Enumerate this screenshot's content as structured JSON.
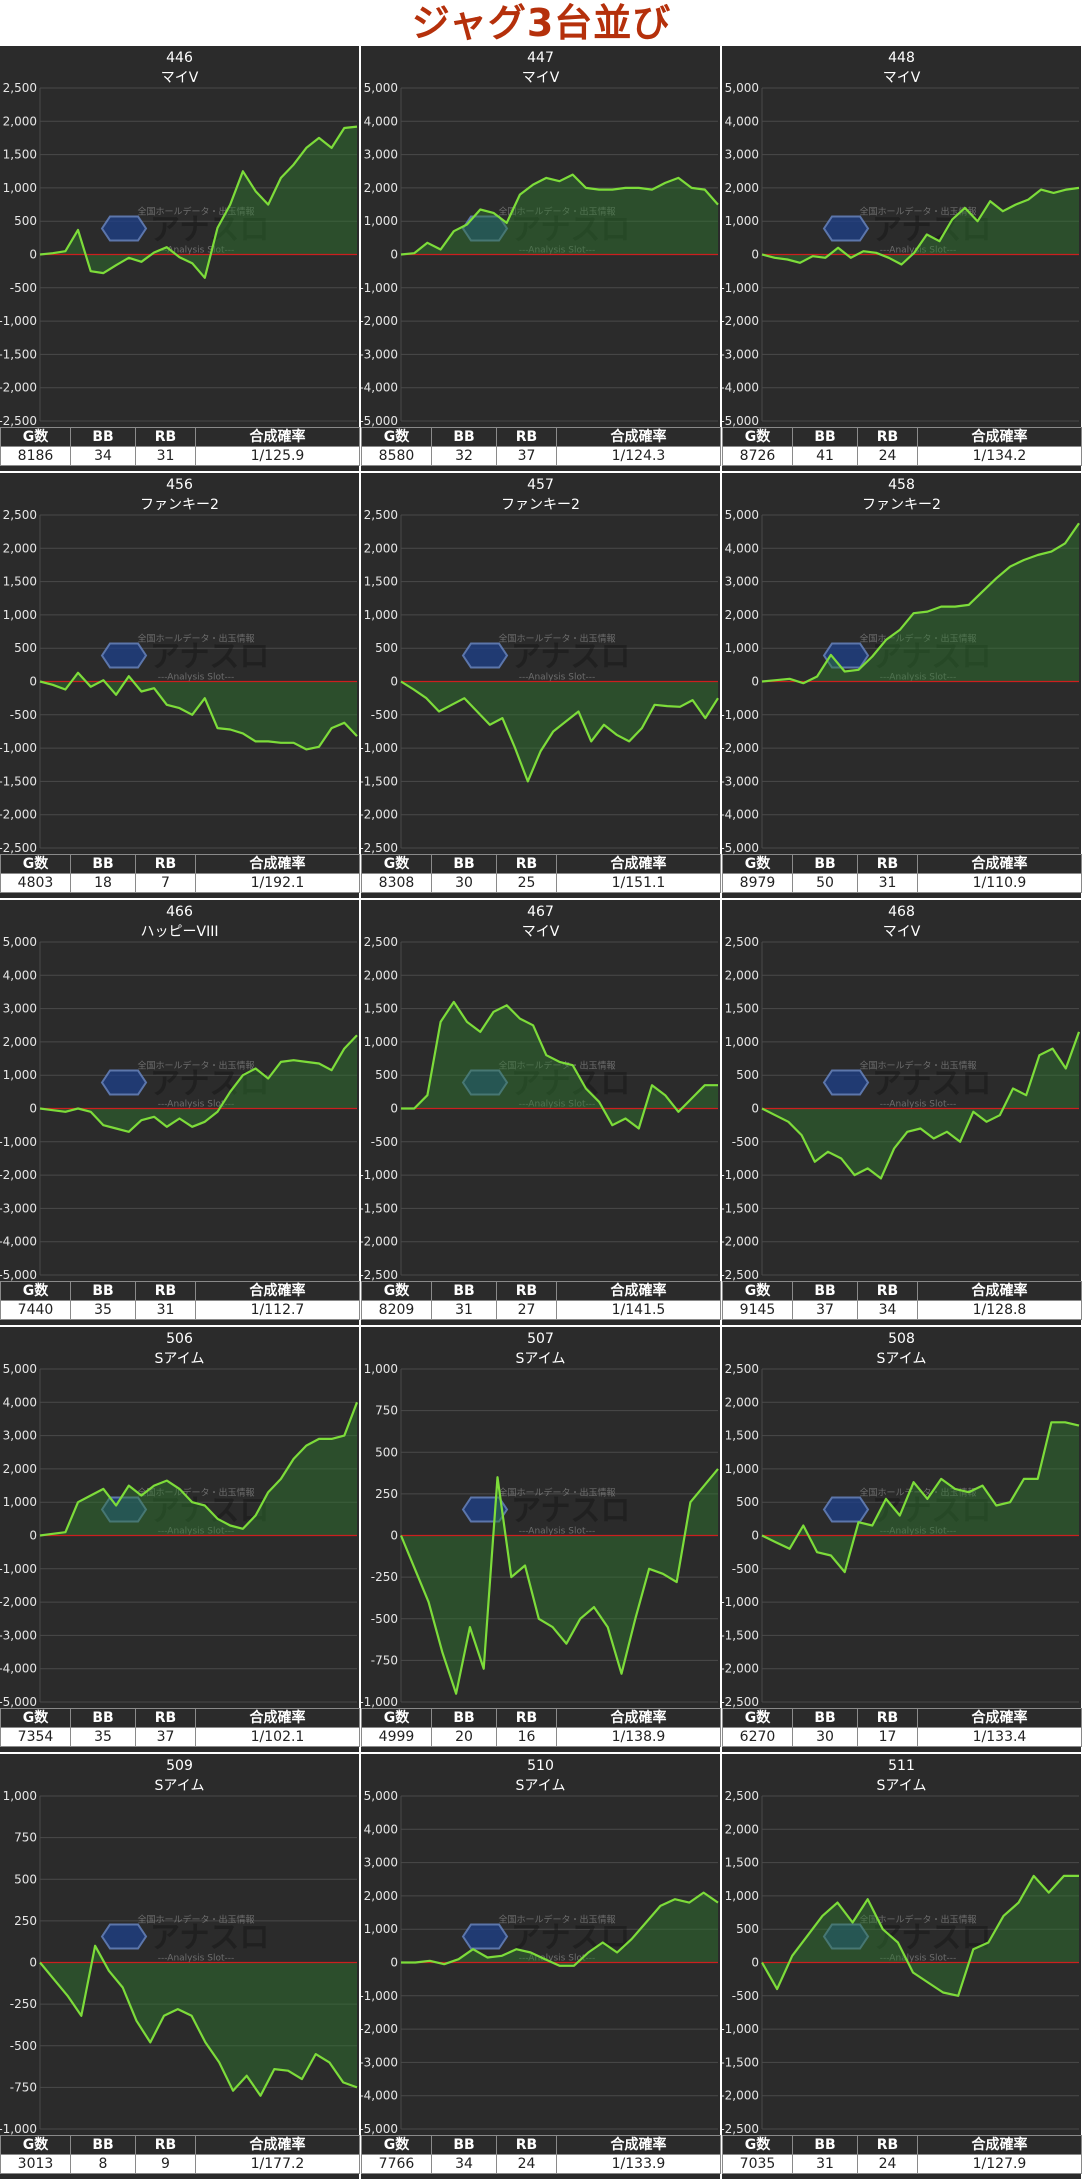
{
  "page_title": "ジャグ3台並び",
  "watermark": {
    "name": "アナスロ",
    "sub": "---Analysis Slot---",
    "tag": "全国ホールデータ・出玉情報"
  },
  "colors": {
    "title": "#b5300b",
    "panel": "#2b2b2b",
    "line": "#7ddc3a",
    "zero": "#cc1f1f",
    "grid": "#4a4a4a"
  },
  "table_headers": {
    "games": "G数",
    "bb": "BB",
    "rb": "RB",
    "prob": "合成確率"
  },
  "chart_data": [
    {
      "type": "line",
      "machine_no": "446",
      "machine_name": "マイV",
      "ylim": [
        -2500,
        2500
      ],
      "yticks": [
        2500,
        2000,
        1500,
        1000,
        500,
        0,
        -500,
        -1000,
        -1500,
        -2000,
        -2500
      ],
      "ytick_labels": [
        "2,500",
        "2,000",
        "1,500",
        "1,000",
        "500",
        "0",
        "-500",
        "-1,000",
        "-1,500",
        "-2,000",
        "-2,500"
      ],
      "values": [
        0,
        20,
        50,
        370,
        -250,
        -280,
        -160,
        -50,
        -110,
        30,
        110,
        -40,
        -130,
        -350,
        400,
        750,
        1250,
        950,
        750,
        1150,
        1350,
        1600,
        1750,
        1600,
        1900,
        1920
      ],
      "stats": {
        "games": "8186",
        "bb": "34",
        "rb": "31",
        "prob": "1/125.9"
      }
    },
    {
      "type": "line",
      "machine_no": "447",
      "machine_name": "マイV",
      "ylim": [
        -5000,
        5000
      ],
      "yticks": [
        5000,
        4000,
        3000,
        2000,
        1000,
        0,
        -1000,
        -2000,
        -3000,
        -4000,
        -5000
      ],
      "ytick_labels": [
        "5,000",
        "4,000",
        "3,000",
        "2,000",
        "1,000",
        "0",
        "-1,000",
        "-2,000",
        "-3,000",
        "-4,000",
        "-5,000"
      ],
      "values": [
        0,
        40,
        350,
        150,
        700,
        900,
        1350,
        1250,
        950,
        1800,
        2100,
        2300,
        2200,
        2400,
        2000,
        1950,
        1950,
        2000,
        2000,
        1950,
        2150,
        2300,
        2000,
        1950,
        1500
      ],
      "stats": {
        "games": "8580",
        "bb": "32",
        "rb": "37",
        "prob": "1/124.3"
      }
    },
    {
      "type": "line",
      "machine_no": "448",
      "machine_name": "マイV",
      "ylim": [
        -5000,
        5000
      ],
      "yticks": [
        5000,
        4000,
        3000,
        2000,
        1000,
        0,
        -1000,
        -2000,
        -3000,
        -4000,
        -5000
      ],
      "ytick_labels": [
        "5,000",
        "4,000",
        "3,000",
        "2,000",
        "1,000",
        "0",
        "-1,000",
        "-2,000",
        "-3,000",
        "-4,000",
        "-5,000"
      ],
      "values": [
        0,
        -100,
        -150,
        -250,
        -50,
        -100,
        200,
        -100,
        100,
        50,
        -100,
        -300,
        50,
        600,
        400,
        1050,
        1400,
        1000,
        1600,
        1300,
        1500,
        1650,
        1950,
        1850,
        1950,
        2000
      ],
      "stats": {
        "games": "8726",
        "bb": "41",
        "rb": "24",
        "prob": "1/134.2"
      }
    },
    {
      "type": "line",
      "machine_no": "456",
      "machine_name": "ファンキー2",
      "ylim": [
        -2500,
        2500
      ],
      "yticks": [
        2500,
        2000,
        1500,
        1000,
        500,
        0,
        -500,
        -1000,
        -1500,
        -2000,
        -2500
      ],
      "ytick_labels": [
        "2,500",
        "2,000",
        "1,500",
        "1,000",
        "500",
        "0",
        "-500",
        "-1,000",
        "-1,500",
        "-2,000",
        "-2,500"
      ],
      "values": [
        0,
        -50,
        -120,
        130,
        -80,
        20,
        -200,
        80,
        -150,
        -100,
        -350,
        -400,
        -500,
        -250,
        -700,
        -720,
        -780,
        -900,
        -900,
        -920,
        -920,
        -1020,
        -980,
        -700,
        -620,
        -820
      ],
      "stats": {
        "games": "4803",
        "bb": "18",
        "rb": "7",
        "prob": "1/192.1"
      }
    },
    {
      "type": "line",
      "machine_no": "457",
      "machine_name": "ファンキー2",
      "ylim": [
        -2500,
        2500
      ],
      "yticks": [
        2500,
        2000,
        1500,
        1000,
        500,
        0,
        -500,
        -1000,
        -1500,
        -2000,
        -2500
      ],
      "ytick_labels": [
        "2,500",
        "2,000",
        "1,500",
        "1,000",
        "500",
        "0",
        "-500",
        "-1,000",
        "-1,500",
        "-2,000",
        "-2,500"
      ],
      "values": [
        0,
        -120,
        -250,
        -450,
        -350,
        -250,
        -450,
        -650,
        -550,
        -1000,
        -1500,
        -1050,
        -750,
        -600,
        -450,
        -900,
        -650,
        -800,
        -900,
        -700,
        -350,
        -370,
        -380,
        -280,
        -550,
        -250
      ],
      "stats": {
        "games": "8308",
        "bb": "30",
        "rb": "25",
        "prob": "1/151.1"
      }
    },
    {
      "type": "line",
      "machine_no": "458",
      "machine_name": "ファンキー2",
      "ylim": [
        -5000,
        5000
      ],
      "yticks": [
        5000,
        4000,
        3000,
        2000,
        1000,
        0,
        -1000,
        -2000,
        -3000,
        -4000,
        -5000
      ],
      "ytick_labels": [
        "5,000",
        "4,000",
        "3,000",
        "2,000",
        "1,000",
        "0",
        "-1,000",
        "-2,000",
        "-3,000",
        "-4,000",
        "-5,000"
      ],
      "values": [
        0,
        40,
        80,
        -50,
        150,
        800,
        300,
        350,
        750,
        1250,
        1550,
        2050,
        2100,
        2250,
        2250,
        2300,
        2700,
        3100,
        3450,
        3650,
        3800,
        3900,
        4150,
        4750
      ],
      "stats": {
        "games": "8979",
        "bb": "50",
        "rb": "31",
        "prob": "1/110.9"
      }
    },
    {
      "type": "line",
      "machine_no": "466",
      "machine_name": "ハッピーVIII",
      "ylim": [
        -5000,
        5000
      ],
      "yticks": [
        5000,
        4000,
        3000,
        2000,
        1000,
        0,
        -1000,
        -2000,
        -3000,
        -4000,
        -5000
      ],
      "ytick_labels": [
        "5,000",
        "4,000",
        "3,000",
        "2,000",
        "1,000",
        "0",
        "-1,000",
        "-2,000",
        "-3,000",
        "-4,000",
        "-5,000"
      ],
      "values": [
        0,
        -50,
        -100,
        0,
        -100,
        -500,
        -600,
        -700,
        -350,
        -250,
        -550,
        -300,
        -550,
        -400,
        -100,
        500,
        1000,
        1200,
        900,
        1400,
        1450,
        1400,
        1350,
        1150,
        1800,
        2200
      ],
      "stats": {
        "games": "7440",
        "bb": "35",
        "rb": "31",
        "prob": "1/112.7"
      }
    },
    {
      "type": "line",
      "machine_no": "467",
      "machine_name": "マイV",
      "ylim": [
        -2500,
        2500
      ],
      "yticks": [
        2500,
        2000,
        1500,
        1000,
        500,
        0,
        -500,
        -1000,
        -1500,
        -2000,
        -2500
      ],
      "ytick_labels": [
        "2,500",
        "2,000",
        "1,500",
        "1,000",
        "500",
        "0",
        "-500",
        "-1,000",
        "-1,500",
        "-2,000",
        "-2,500"
      ],
      "values": [
        0,
        0,
        200,
        1300,
        1600,
        1300,
        1150,
        1450,
        1550,
        1350,
        1250,
        800,
        700,
        650,
        300,
        100,
        -250,
        -150,
        -300,
        350,
        200,
        -50,
        150,
        350,
        350
      ],
      "stats": {
        "games": "8209",
        "bb": "31",
        "rb": "27",
        "prob": "1/141.5"
      }
    },
    {
      "type": "line",
      "machine_no": "468",
      "machine_name": "マイV",
      "ylim": [
        -2500,
        2500
      ],
      "yticks": [
        2500,
        2000,
        1500,
        1000,
        500,
        0,
        -500,
        -1000,
        -1500,
        -2000,
        -2500
      ],
      "ytick_labels": [
        "2,500",
        "2,000",
        "1,500",
        "1,000",
        "500",
        "0",
        "-500",
        "-1,000",
        "-1,500",
        "-2,000",
        "-2,500"
      ],
      "values": [
        0,
        -100,
        -200,
        -400,
        -800,
        -650,
        -750,
        -1000,
        -900,
        -1050,
        -600,
        -350,
        -300,
        -450,
        -350,
        -500,
        -50,
        -200,
        -100,
        300,
        200,
        800,
        900,
        600,
        1150
      ],
      "stats": {
        "games": "9145",
        "bb": "37",
        "rb": "34",
        "prob": "1/128.8"
      }
    },
    {
      "type": "line",
      "machine_no": "506",
      "machine_name": "Sアイム",
      "ylim": [
        -5000,
        5000
      ],
      "yticks": [
        5000,
        4000,
        3000,
        2000,
        1000,
        0,
        -1000,
        -2000,
        -3000,
        -4000,
        -5000
      ],
      "ytick_labels": [
        "5,000",
        "4,000",
        "3,000",
        "2,000",
        "1,000",
        "0",
        "-1,000",
        "-2,000",
        "-3,000",
        "-4,000",
        "-5,000"
      ],
      "values": [
        0,
        50,
        100,
        1000,
        1200,
        1400,
        900,
        1500,
        1200,
        1500,
        1650,
        1400,
        1000,
        900,
        500,
        300,
        200,
        600,
        1300,
        1700,
        2300,
        2700,
        2900,
        2900,
        3000,
        4000
      ],
      "stats": {
        "games": "7354",
        "bb": "35",
        "rb": "37",
        "prob": "1/102.1"
      }
    },
    {
      "type": "line",
      "machine_no": "507",
      "machine_name": "Sアイム",
      "ylim": [
        -1000,
        1000
      ],
      "yticks": [
        1000,
        750,
        500,
        250,
        0,
        -250,
        -500,
        -750,
        -1000
      ],
      "ytick_labels": [
        "1,000",
        "750",
        "500",
        "250",
        "0",
        "-250",
        "-500",
        "-750",
        "-1,000"
      ],
      "values": [
        0,
        -200,
        -400,
        -700,
        -950,
        -550,
        -800,
        350,
        -250,
        -180,
        -500,
        -550,
        -650,
        -500,
        -430,
        -550,
        -830,
        -500,
        -200,
        -230,
        -280,
        200,
        300,
        400
      ],
      "stats": {
        "games": "4999",
        "bb": "20",
        "rb": "16",
        "prob": "1/138.9"
      }
    },
    {
      "type": "line",
      "machine_no": "508",
      "machine_name": "Sアイム",
      "ylim": [
        -2500,
        2500
      ],
      "yticks": [
        2500,
        2000,
        1500,
        1000,
        500,
        0,
        -500,
        -1000,
        -1500,
        -2000,
        -2500
      ],
      "ytick_labels": [
        "2,500",
        "2,000",
        "1,500",
        "1,000",
        "500",
        "0",
        "-500",
        "-1,000",
        "-1,500",
        "-2,000",
        "-2,500"
      ],
      "values": [
        0,
        -100,
        -200,
        150,
        -250,
        -300,
        -550,
        200,
        150,
        550,
        300,
        800,
        550,
        850,
        700,
        650,
        750,
        450,
        500,
        850,
        850,
        1700,
        1700,
        1650
      ],
      "stats": {
        "games": "6270",
        "bb": "30",
        "rb": "17",
        "prob": "1/133.4"
      }
    },
    {
      "type": "line",
      "machine_no": "509",
      "machine_name": "Sアイム",
      "ylim": [
        -1000,
        1000
      ],
      "yticks": [
        1000,
        750,
        500,
        250,
        0,
        -250,
        -500,
        -750,
        -1000
      ],
      "ytick_labels": [
        "1,000",
        "750",
        "500",
        "250",
        "0",
        "-250",
        "-500",
        "-750",
        "-1,000"
      ],
      "values": [
        0,
        -100,
        -200,
        -320,
        100,
        -50,
        -150,
        -350,
        -480,
        -320,
        -280,
        -320,
        -480,
        -600,
        -770,
        -680,
        -800,
        -640,
        -650,
        -700,
        -550,
        -600,
        -720,
        -750
      ],
      "stats": {
        "games": "3013",
        "bb": "8",
        "rb": "9",
        "prob": "1/177.2"
      }
    },
    {
      "type": "line",
      "machine_no": "510",
      "machine_name": "Sアイム",
      "ylim": [
        -5000,
        5000
      ],
      "yticks": [
        5000,
        4000,
        3000,
        2000,
        1000,
        0,
        -1000,
        -2000,
        -3000,
        -4000,
        -5000
      ],
      "ytick_labels": [
        "5,000",
        "4,000",
        "3,000",
        "2,000",
        "1,000",
        "0",
        "-1,000",
        "-2,000",
        "-3,000",
        "-4,000",
        "-5,000"
      ],
      "values": [
        0,
        0,
        50,
        -50,
        100,
        400,
        150,
        200,
        400,
        300,
        100,
        -100,
        -100,
        300,
        600,
        300,
        700,
        1200,
        1700,
        1900,
        1800,
        2100,
        1800
      ],
      "stats": {
        "games": "7766",
        "bb": "34",
        "rb": "24",
        "prob": "1/133.9"
      }
    },
    {
      "type": "line",
      "machine_no": "511",
      "machine_name": "Sアイム",
      "ylim": [
        -2500,
        2500
      ],
      "yticks": [
        2500,
        2000,
        1500,
        1000,
        500,
        0,
        -500,
        -1000,
        -1500,
        -2000,
        -2500
      ],
      "ytick_labels": [
        "2,500",
        "2,000",
        "1,500",
        "1,000",
        "500",
        "0",
        "-500",
        "-1,000",
        "-1,500",
        "-2,000",
        "-2,500"
      ],
      "values": [
        0,
        -400,
        100,
        400,
        700,
        900,
        600,
        950,
        500,
        300,
        -150,
        -300,
        -450,
        -500,
        200,
        300,
        700,
        900,
        1300,
        1050,
        1300,
        1300
      ],
      "stats": {
        "games": "7035",
        "bb": "31",
        "rb": "24",
        "prob": "1/127.9"
      }
    }
  ]
}
